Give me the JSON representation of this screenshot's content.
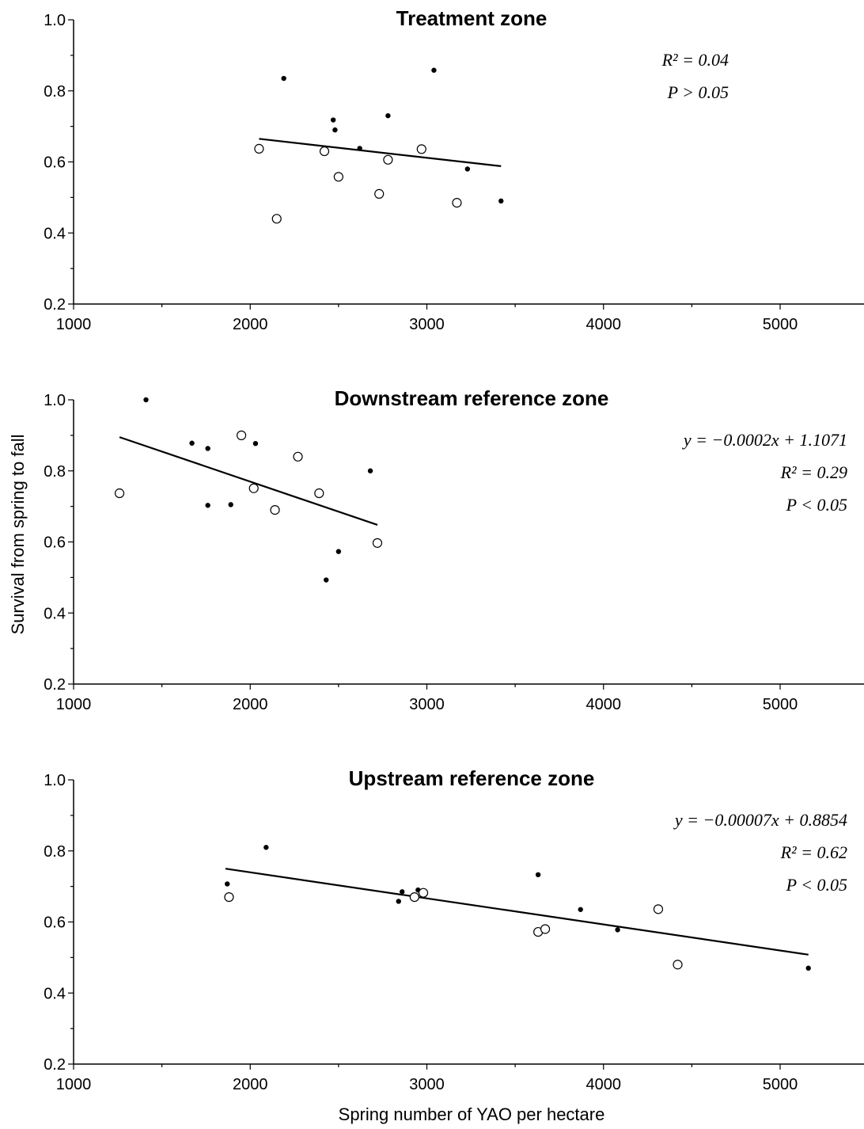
{
  "figure": {
    "ylabel": "Survival from spring to fall",
    "xlabel": "Spring number of YAO per hectare"
  },
  "chart_data": [
    {
      "type": "scatter",
      "title": "Treatment zone",
      "xlim": [
        1000,
        5500
      ],
      "ylim": [
        0.2,
        1.0
      ],
      "xticks": [
        1000,
        2000,
        3000,
        4000,
        5000
      ],
      "xtick_labels": [
        "1000",
        "2000",
        "3000",
        "4000",
        "5000"
      ],
      "yticks": [
        0.2,
        0.4,
        0.6,
        0.8,
        1.0
      ],
      "ytick_labels": [
        "0.2",
        "0.4",
        "0.6",
        "0.8",
        "1.0"
      ],
      "annotations": [
        "R² = 0.04",
        "P > 0.05"
      ],
      "series": [
        {
          "marker": "filled",
          "x": [
            2190,
            2470,
            2480,
            2620,
            2780,
            3040,
            3230,
            3420
          ],
          "y": [
            0.835,
            0.718,
            0.69,
            0.638,
            0.73,
            0.858,
            0.58,
            0.49
          ]
        },
        {
          "marker": "open",
          "x": [
            2050,
            2150,
            2420,
            2500,
            2730,
            2780,
            2970,
            3170
          ],
          "y": [
            0.637,
            0.44,
            0.63,
            0.558,
            0.51,
            0.606,
            0.636,
            0.485
          ]
        }
      ],
      "fit": {
        "x": [
          2050,
          3420
        ],
        "y": [
          0.665,
          0.588
        ]
      }
    },
    {
      "type": "scatter",
      "title": "Downstream reference zone",
      "xlim": [
        1000,
        5500
      ],
      "ylim": [
        0.2,
        1.0
      ],
      "xticks": [
        1000,
        2000,
        3000,
        4000,
        5000
      ],
      "xtick_labels": [
        "1000",
        "2000",
        "3000",
        "4000",
        "5000"
      ],
      "yticks": [
        0.2,
        0.4,
        0.6,
        0.8,
        1.0
      ],
      "ytick_labels": [
        "0.2",
        "0.4",
        "0.6",
        "0.8",
        "1.0"
      ],
      "annotations": [
        "y = −0.0002x + 1.1071",
        "R² = 0.29",
        "P < 0.05"
      ],
      "series": [
        {
          "marker": "filled",
          "x": [
            1410,
            1670,
            1760,
            1760,
            1890,
            2030,
            2430,
            2500,
            2680
          ],
          "y": [
            1.0,
            0.878,
            0.863,
            0.703,
            0.705,
            0.877,
            0.493,
            0.573,
            0.8
          ]
        },
        {
          "marker": "open",
          "x": [
            1260,
            1950,
            2020,
            2140,
            2270,
            2390,
            2720
          ],
          "y": [
            0.737,
            0.9,
            0.751,
            0.69,
            0.84,
            0.737,
            0.597
          ]
        }
      ],
      "fit": {
        "x": [
          1260,
          2720
        ],
        "y": [
          0.895,
          0.648
        ]
      }
    },
    {
      "type": "scatter",
      "title": "Upstream reference zone",
      "xlim": [
        1000,
        5500
      ],
      "ylim": [
        0.2,
        1.0
      ],
      "xticks": [
        1000,
        2000,
        3000,
        4000,
        5000
      ],
      "xtick_labels": [
        "1000",
        "2000",
        "3000",
        "4000",
        "5000"
      ],
      "yticks": [
        0.2,
        0.4,
        0.6,
        0.8,
        1.0
      ],
      "ytick_labels": [
        "0.2",
        "0.4",
        "0.6",
        "0.8",
        "1.0"
      ],
      "annotations": [
        "y = −0.00007x + 0.8854",
        "R² = 0.62",
        "P < 0.05"
      ],
      "series": [
        {
          "marker": "filled",
          "x": [
            1870,
            2090,
            2840,
            2860,
            2950,
            3630,
            3870,
            4080,
            5160
          ],
          "y": [
            0.707,
            0.81,
            0.658,
            0.685,
            0.69,
            0.733,
            0.635,
            0.578,
            0.47
          ]
        },
        {
          "marker": "open",
          "x": [
            1880,
            2930,
            2980,
            3630,
            3670,
            4310,
            4420
          ],
          "y": [
            0.67,
            0.67,
            0.682,
            0.572,
            0.58,
            0.636,
            0.48
          ]
        }
      ],
      "fit": {
        "x": [
          1860,
          5160
        ],
        "y": [
          0.75,
          0.508
        ]
      }
    }
  ]
}
